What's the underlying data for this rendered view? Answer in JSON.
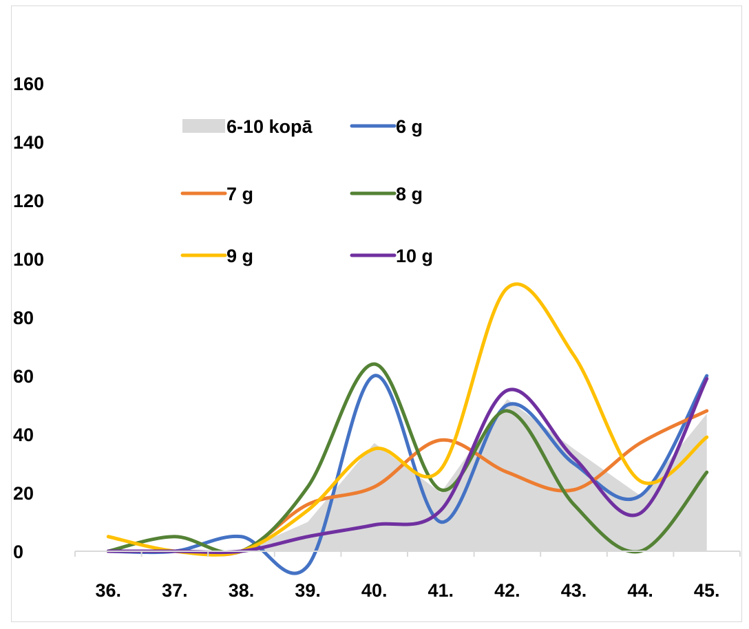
{
  "chart_data": {
    "type": "line",
    "title": "",
    "xlabel": "",
    "ylabel": "",
    "categories": [
      "36.",
      "37.",
      "38.",
      "39.",
      "40.",
      "41.",
      "42.",
      "43.",
      "44.",
      "45."
    ],
    "ylim": [
      0,
      160
    ],
    "yticks": [
      "0",
      "20",
      "40",
      "60",
      "80",
      "100",
      "120",
      "140",
      "160"
    ],
    "grid": false,
    "legend_position": "top-left inside plot",
    "series": [
      {
        "name": "6-10 kopā",
        "kind": "area",
        "color": "#d9d9d9",
        "values": [
          0,
          0,
          0,
          10,
          37,
          20,
          52,
          35,
          19,
          47
        ]
      },
      {
        "name": "6 g",
        "kind": "line",
        "color": "#4472c4",
        "values": [
          0,
          0,
          5,
          -5,
          60,
          10,
          50,
          30,
          19,
          60
        ]
      },
      {
        "name": "7 g",
        "kind": "line",
        "color": "#ed7d31",
        "values": [
          0,
          0,
          0,
          16,
          22,
          38,
          27,
          21,
          37,
          48
        ]
      },
      {
        "name": "8 g",
        "kind": "line",
        "color": "#548235",
        "values": [
          0,
          5,
          0,
          22,
          64,
          21,
          48,
          16,
          0,
          27
        ]
      },
      {
        "name": "9 g",
        "kind": "line",
        "color": "#ffc000",
        "values": [
          5,
          0,
          0,
          14,
          35,
          28,
          90,
          67,
          24,
          39
        ]
      },
      {
        "name": "10 g",
        "kind": "line",
        "color": "#7030a0",
        "values": [
          0,
          0,
          0,
          5,
          9,
          14,
          55,
          32,
          13,
          59
        ]
      }
    ]
  }
}
